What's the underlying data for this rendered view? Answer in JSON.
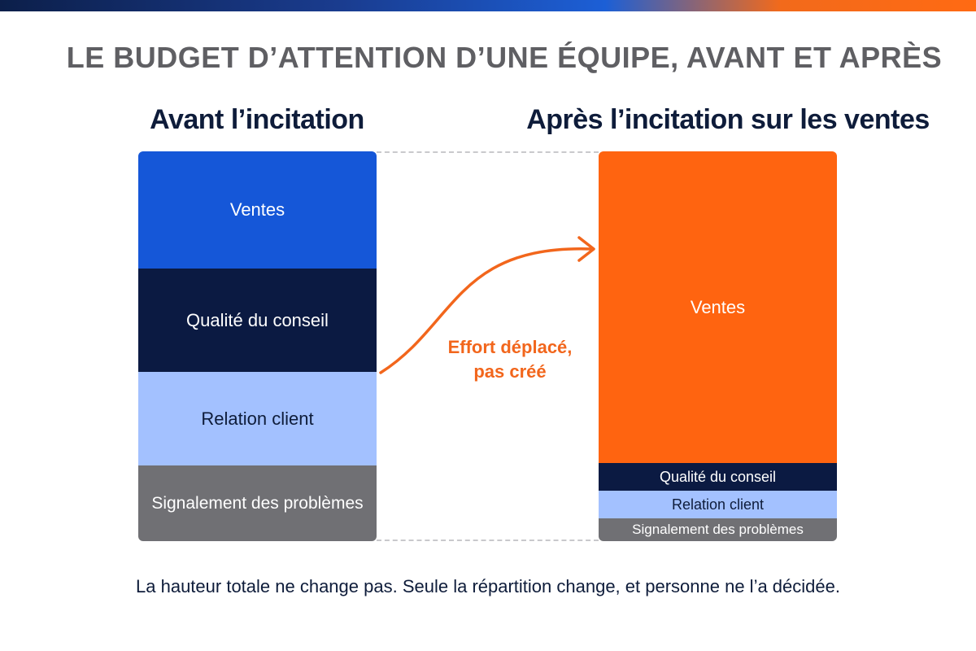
{
  "title": "LE BUDGET D’ATTENTION D’UNE ÉQUIPE, AVANT ET APRÈS",
  "colors": {
    "sales_blue": "#1557d8",
    "advice_navy": "#0b1a42",
    "relation_lightblue": "#a3c1ff",
    "reporting_gray": "#707074",
    "sales_orange": "#ff6410",
    "accent_orange": "#f2661c",
    "text_navy": "#0e1c3a"
  },
  "before": {
    "title": "Avant l’incitation",
    "segments": [
      {
        "label": "Ventes",
        "share": 0.3,
        "color": "#1557d8",
        "text_color": "#ffffff",
        "font_size": 22
      },
      {
        "label": "Qualité du conseil",
        "share": 0.265,
        "color": "#0b1a42",
        "text_color": "#ffffff",
        "font_size": 22
      },
      {
        "label": "Relation client",
        "share": 0.24,
        "color": "#a3c1ff",
        "text_color": "#0e1c3a",
        "font_size": 22
      },
      {
        "label": "Signalement des problèmes",
        "share": 0.195,
        "color": "#707074",
        "text_color": "#ffffff",
        "font_size": 21
      }
    ]
  },
  "after": {
    "title": "Après l’incitation sur les ventes",
    "segments": [
      {
        "label": "Ventes",
        "share": 0.8,
        "color": "#ff6410",
        "text_color": "#ffffff",
        "font_size": 22
      },
      {
        "label": "Qualité du conseil",
        "share": 0.07,
        "color": "#0b1a42",
        "text_color": "#ffffff",
        "font_size": 18
      },
      {
        "label": "Relation client",
        "share": 0.07,
        "color": "#a3c1ff",
        "text_color": "#0e1c3a",
        "font_size": 18
      },
      {
        "label": "Signalement des problèmes",
        "share": 0.06,
        "color": "#707074",
        "text_color": "#ffffff",
        "font_size": 17
      }
    ]
  },
  "arrow": {
    "label_line1": "Effort déplacé,",
    "label_line2": "pas créé"
  },
  "footnote": "La hauteur totale ne change pas. Seule la répartition change, et personne ne l’a décidée."
}
